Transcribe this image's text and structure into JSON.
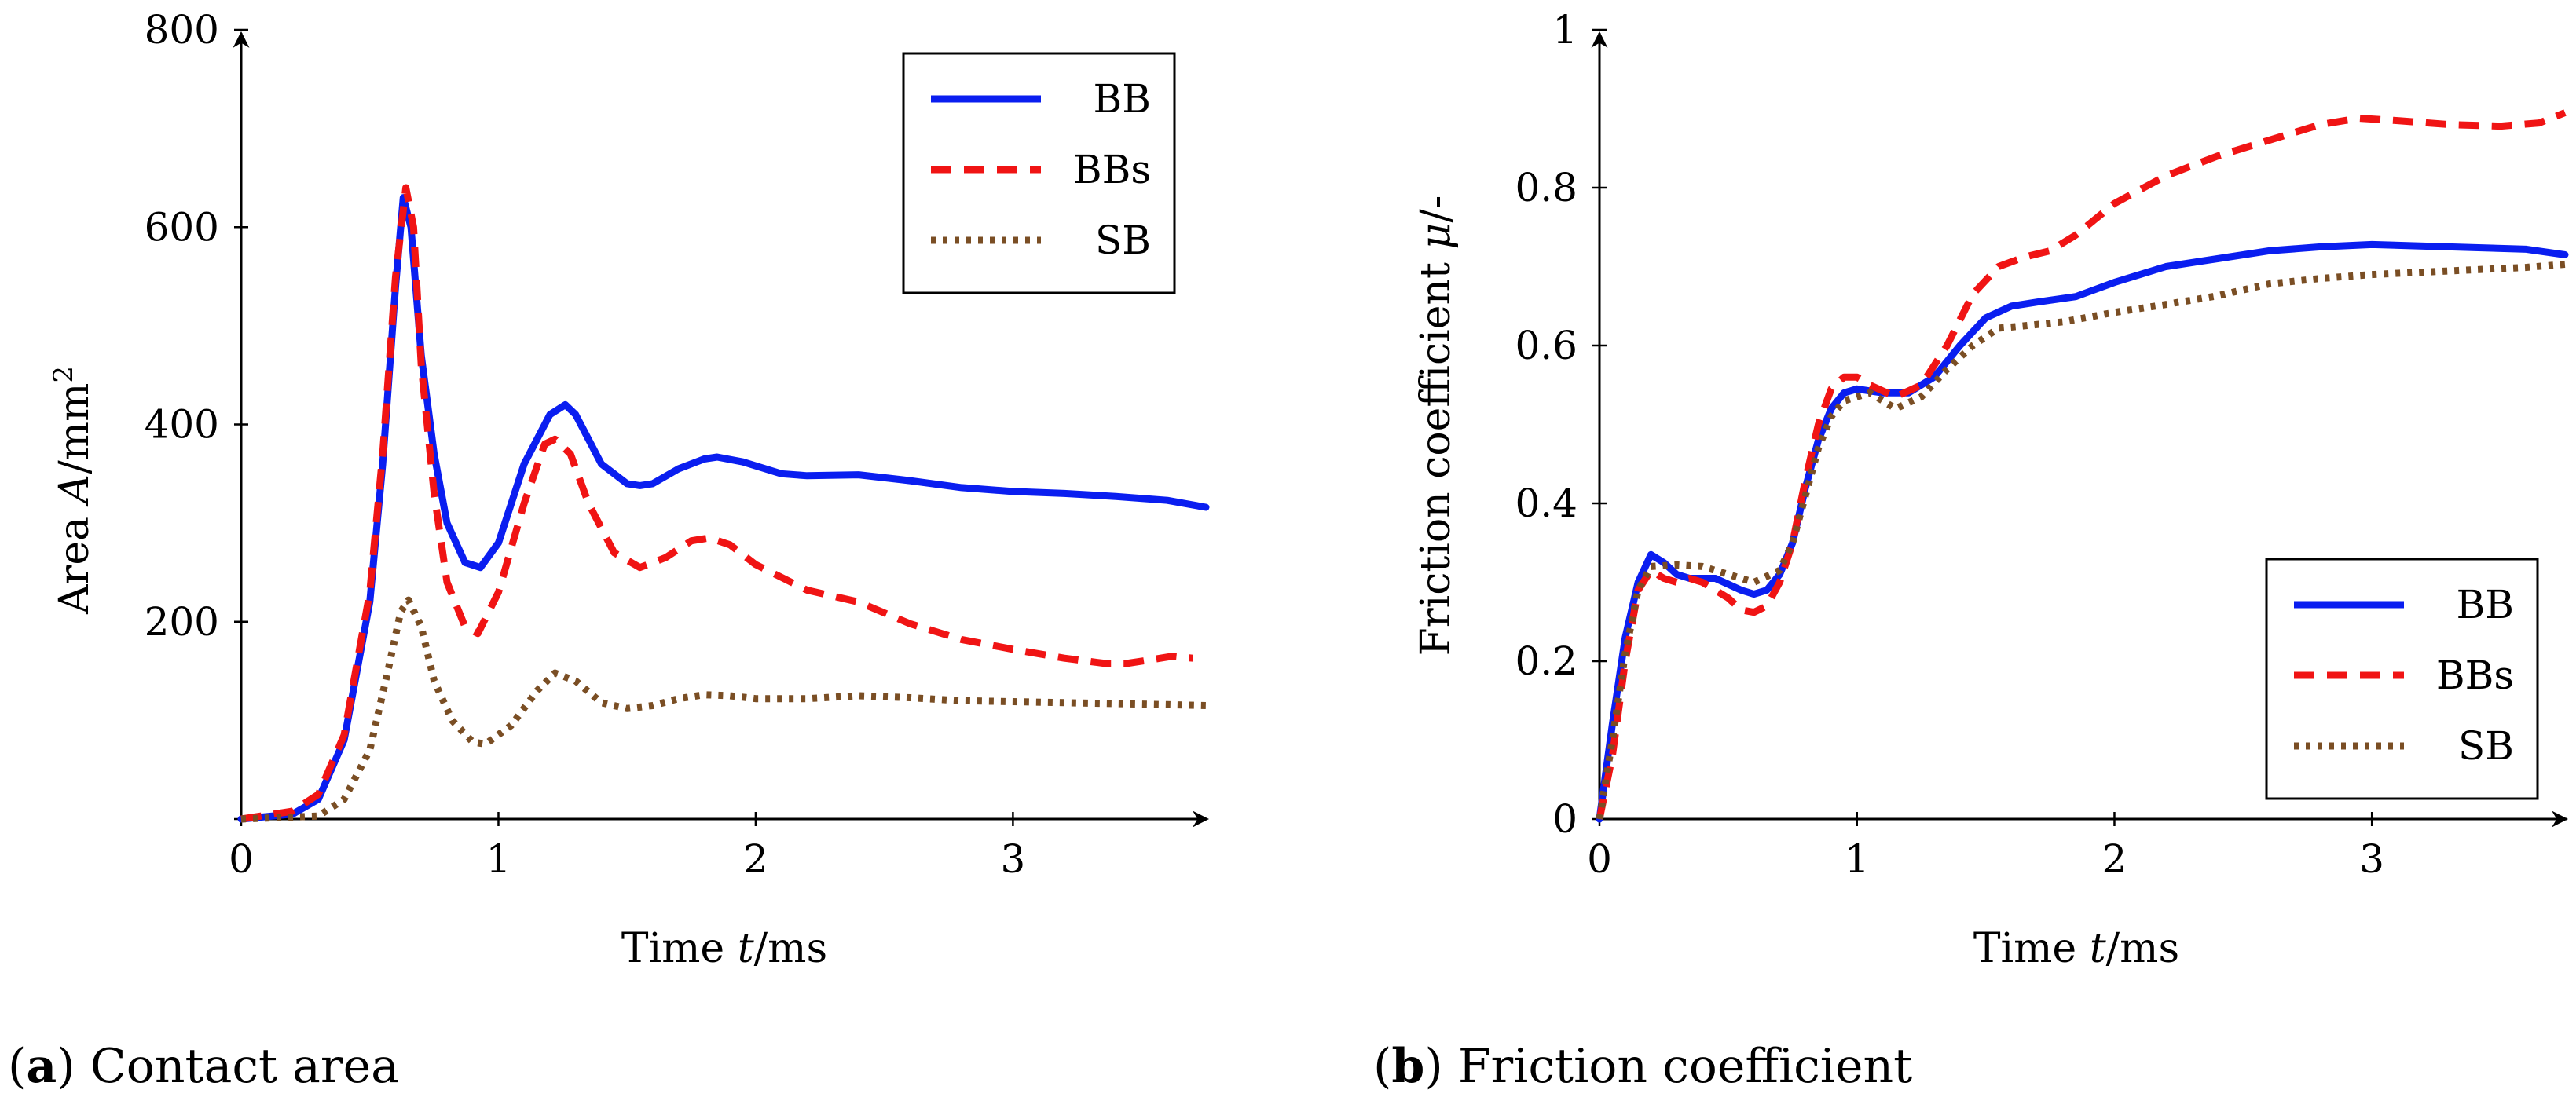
{
  "colors": {
    "BB": "#0a1ef0",
    "BBs": "#f01414",
    "SB": "#7a4e24"
  },
  "captions": [
    {
      "letter": "a",
      "text": " Contact area"
    },
    {
      "letter": "b",
      "text": " Friction coefficient"
    }
  ],
  "chart_data": [
    {
      "type": "line",
      "xlabel_pre": "Time ",
      "xlabel_var": "t",
      "xlabel_post": "/ms",
      "ylabel_pre": "Area ",
      "ylabel_var": "A",
      "ylabel_post": "/mm",
      "ylabel_sup": "2",
      "xlim": [
        0,
        3.75
      ],
      "ylim": [
        0,
        800
      ],
      "xticks": [
        0,
        1,
        2,
        3
      ],
      "xtick_labels": [
        "0",
        "1",
        "2",
        "3"
      ],
      "yticks": [
        0,
        200,
        400,
        600,
        800
      ],
      "ytick_labels": [
        "",
        "200",
        "400",
        "600",
        "800"
      ],
      "grid": false,
      "legend_position": "top-right",
      "series": [
        {
          "name": "BB",
          "style": "solid",
          "points": [
            [
              0,
              0
            ],
            [
              0.2,
              5
            ],
            [
              0.3,
              20
            ],
            [
              0.4,
              80
            ],
            [
              0.5,
              220
            ],
            [
              0.55,
              360
            ],
            [
              0.6,
              540
            ],
            [
              0.63,
              630
            ],
            [
              0.66,
              600
            ],
            [
              0.7,
              470
            ],
            [
              0.75,
              370
            ],
            [
              0.8,
              300
            ],
            [
              0.87,
              260
            ],
            [
              0.93,
              255
            ],
            [
              1.0,
              280
            ],
            [
              1.1,
              360
            ],
            [
              1.2,
              410
            ],
            [
              1.26,
              420
            ],
            [
              1.3,
              410
            ],
            [
              1.4,
              360
            ],
            [
              1.5,
              340
            ],
            [
              1.55,
              338
            ],
            [
              1.6,
              340
            ],
            [
              1.7,
              355
            ],
            [
              1.8,
              365
            ],
            [
              1.85,
              367
            ],
            [
              1.95,
              362
            ],
            [
              2.1,
              350
            ],
            [
              2.2,
              348
            ],
            [
              2.4,
              349
            ],
            [
              2.6,
              343
            ],
            [
              2.8,
              336
            ],
            [
              3.0,
              332
            ],
            [
              3.2,
              330
            ],
            [
              3.4,
              327
            ],
            [
              3.6,
              323
            ],
            [
              3.75,
              316
            ]
          ]
        },
        {
          "name": "BBs",
          "style": "dashed",
          "points": [
            [
              0,
              0
            ],
            [
              0.2,
              8
            ],
            [
              0.3,
              25
            ],
            [
              0.4,
              85
            ],
            [
              0.5,
              230
            ],
            [
              0.55,
              370
            ],
            [
              0.6,
              550
            ],
            [
              0.64,
              640
            ],
            [
              0.67,
              600
            ],
            [
              0.7,
              460
            ],
            [
              0.75,
              330
            ],
            [
              0.8,
              240
            ],
            [
              0.87,
              195
            ],
            [
              0.92,
              188
            ],
            [
              1.0,
              230
            ],
            [
              1.1,
              320
            ],
            [
              1.18,
              380
            ],
            [
              1.22,
              385
            ],
            [
              1.28,
              370
            ],
            [
              1.35,
              320
            ],
            [
              1.45,
              270
            ],
            [
              1.55,
              255
            ],
            [
              1.65,
              265
            ],
            [
              1.75,
              282
            ],
            [
              1.82,
              285
            ],
            [
              1.9,
              278
            ],
            [
              2.0,
              258
            ],
            [
              2.2,
              232
            ],
            [
              2.4,
              220
            ],
            [
              2.6,
              198
            ],
            [
              2.8,
              182
            ],
            [
              3.0,
              172
            ],
            [
              3.2,
              163
            ],
            [
              3.35,
              158
            ],
            [
              3.45,
              158
            ],
            [
              3.55,
              162
            ],
            [
              3.62,
              165
            ],
            [
              3.7,
              163
            ]
          ]
        },
        {
          "name": "SB",
          "style": "dotted",
          "points": [
            [
              0,
              0
            ],
            [
              0.3,
              3
            ],
            [
              0.4,
              20
            ],
            [
              0.5,
              70
            ],
            [
              0.57,
              150
            ],
            [
              0.62,
              210
            ],
            [
              0.65,
              222
            ],
            [
              0.7,
              195
            ],
            [
              0.75,
              140
            ],
            [
              0.82,
              100
            ],
            [
              0.9,
              78
            ],
            [
              0.95,
              76
            ],
            [
              1.05,
              95
            ],
            [
              1.15,
              130
            ],
            [
              1.22,
              148
            ],
            [
              1.3,
              140
            ],
            [
              1.4,
              118
            ],
            [
              1.5,
              112
            ],
            [
              1.6,
              115
            ],
            [
              1.7,
              122
            ],
            [
              1.8,
              126
            ],
            [
              1.9,
              125
            ],
            [
              2.0,
              122
            ],
            [
              2.2,
              122
            ],
            [
              2.4,
              125
            ],
            [
              2.6,
              123
            ],
            [
              2.8,
              120
            ],
            [
              3.0,
              119
            ],
            [
              3.2,
              118
            ],
            [
              3.4,
              117
            ],
            [
              3.6,
              116
            ],
            [
              3.75,
              115
            ]
          ]
        }
      ]
    },
    {
      "type": "line",
      "xlabel_pre": "Time ",
      "xlabel_var": "t",
      "xlabel_post": "/ms",
      "ylabel_pre": "Friction coefficient ",
      "ylabel_var": "μ",
      "ylabel_post": "/-",
      "xlim": [
        0,
        3.75
      ],
      "ylim": [
        0,
        1
      ],
      "xticks": [
        0,
        1,
        2,
        3
      ],
      "xtick_labels": [
        "0",
        "1",
        "2",
        "3"
      ],
      "yticks": [
        0,
        0.2,
        0.4,
        0.6,
        0.8,
        1
      ],
      "ytick_labels": [
        "0",
        "0.2",
        "0.4",
        "0.6",
        "0.8",
        "1"
      ],
      "grid": false,
      "legend_position": "bottom-right",
      "series": [
        {
          "name": "BB",
          "style": "solid",
          "points": [
            [
              0,
              0
            ],
            [
              0.05,
              0.12
            ],
            [
              0.1,
              0.23
            ],
            [
              0.15,
              0.3
            ],
            [
              0.2,
              0.335
            ],
            [
              0.25,
              0.325
            ],
            [
              0.3,
              0.31
            ],
            [
              0.35,
              0.305
            ],
            [
              0.45,
              0.305
            ],
            [
              0.55,
              0.29
            ],
            [
              0.6,
              0.285
            ],
            [
              0.65,
              0.29
            ],
            [
              0.7,
              0.31
            ],
            [
              0.75,
              0.35
            ],
            [
              0.8,
              0.42
            ],
            [
              0.85,
              0.48
            ],
            [
              0.9,
              0.52
            ],
            [
              0.95,
              0.54
            ],
            [
              1.0,
              0.545
            ],
            [
              1.1,
              0.54
            ],
            [
              1.2,
              0.54
            ],
            [
              1.3,
              0.56
            ],
            [
              1.4,
              0.6
            ],
            [
              1.5,
              0.635
            ],
            [
              1.6,
              0.65
            ],
            [
              1.7,
              0.655
            ],
            [
              1.85,
              0.662
            ],
            [
              2.0,
              0.68
            ],
            [
              2.2,
              0.7
            ],
            [
              2.4,
              0.71
            ],
            [
              2.6,
              0.72
            ],
            [
              2.8,
              0.725
            ],
            [
              3.0,
              0.728
            ],
            [
              3.2,
              0.726
            ],
            [
              3.4,
              0.724
            ],
            [
              3.6,
              0.722
            ],
            [
              3.75,
              0.715
            ]
          ]
        },
        {
          "name": "BBs",
          "style": "dashed",
          "points": [
            [
              0,
              0
            ],
            [
              0.05,
              0.08
            ],
            [
              0.1,
              0.2
            ],
            [
              0.15,
              0.29
            ],
            [
              0.2,
              0.315
            ],
            [
              0.25,
              0.305
            ],
            [
              0.3,
              0.3
            ],
            [
              0.35,
              0.305
            ],
            [
              0.4,
              0.3
            ],
            [
              0.45,
              0.29
            ],
            [
              0.5,
              0.28
            ],
            [
              0.55,
              0.265
            ],
            [
              0.6,
              0.262
            ],
            [
              0.65,
              0.27
            ],
            [
              0.7,
              0.3
            ],
            [
              0.75,
              0.35
            ],
            [
              0.8,
              0.43
            ],
            [
              0.85,
              0.5
            ],
            [
              0.9,
              0.545
            ],
            [
              0.95,
              0.56
            ],
            [
              1.0,
              0.56
            ],
            [
              1.05,
              0.55
            ],
            [
              1.15,
              0.535
            ],
            [
              1.25,
              0.55
            ],
            [
              1.35,
              0.6
            ],
            [
              1.45,
              0.665
            ],
            [
              1.55,
              0.7
            ],
            [
              1.65,
              0.712
            ],
            [
              1.75,
              0.72
            ],
            [
              1.85,
              0.74
            ],
            [
              2.0,
              0.78
            ],
            [
              2.2,
              0.815
            ],
            [
              2.4,
              0.84
            ],
            [
              2.6,
              0.86
            ],
            [
              2.8,
              0.88
            ],
            [
              2.95,
              0.888
            ],
            [
              3.1,
              0.885
            ],
            [
              3.3,
              0.88
            ],
            [
              3.5,
              0.878
            ],
            [
              3.65,
              0.882
            ],
            [
              3.75,
              0.895
            ]
          ]
        },
        {
          "name": "SB",
          "style": "dotted",
          "points": [
            [
              0,
              0
            ],
            [
              0.05,
              0.1
            ],
            [
              0.1,
              0.21
            ],
            [
              0.15,
              0.29
            ],
            [
              0.2,
              0.32
            ],
            [
              0.3,
              0.322
            ],
            [
              0.4,
              0.32
            ],
            [
              0.5,
              0.31
            ],
            [
              0.6,
              0.3
            ],
            [
              0.7,
              0.315
            ],
            [
              0.75,
              0.35
            ],
            [
              0.8,
              0.41
            ],
            [
              0.85,
              0.47
            ],
            [
              0.9,
              0.51
            ],
            [
              0.95,
              0.53
            ],
            [
              1.05,
              0.54
            ],
            [
              1.15,
              0.52
            ],
            [
              1.25,
              0.535
            ],
            [
              1.35,
              0.57
            ],
            [
              1.45,
              0.6
            ],
            [
              1.55,
              0.622
            ],
            [
              1.65,
              0.625
            ],
            [
              1.8,
              0.63
            ],
            [
              2.0,
              0.642
            ],
            [
              2.2,
              0.652
            ],
            [
              2.4,
              0.663
            ],
            [
              2.6,
              0.678
            ],
            [
              2.8,
              0.685
            ],
            [
              3.0,
              0.69
            ],
            [
              3.2,
              0.693
            ],
            [
              3.4,
              0.696
            ],
            [
              3.6,
              0.699
            ],
            [
              3.75,
              0.703
            ]
          ]
        }
      ]
    }
  ]
}
